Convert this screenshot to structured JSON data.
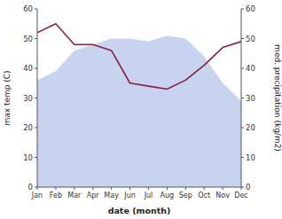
{
  "chart_data": {
    "type": "line",
    "categories": [
      "Jan",
      "Feb",
      "Mar",
      "Apr",
      "May",
      "Jun",
      "Jul",
      "Aug",
      "Sep",
      "Oct",
      "Nov",
      "Dec"
    ],
    "series": [
      {
        "type": "area",
        "color": "#b0c0e8",
        "values": [
          36,
          39,
          46,
          48,
          50,
          50,
          49,
          51,
          50,
          44,
          35,
          29
        ]
      },
      {
        "type": "line",
        "color": "#8b2040",
        "axis": "y2",
        "values": [
          52,
          55,
          48,
          48,
          46,
          35,
          34,
          33,
          36,
          41,
          47,
          49
        ]
      }
    ],
    "xlabel": "date (month)",
    "ylabel": "max temp (C)",
    "y2label": "med. precipitation (kg/m2)",
    "ylim": [
      0,
      60
    ],
    "yticks": [
      0,
      10,
      20,
      30,
      40,
      50,
      60
    ],
    "y2lim": [
      0,
      60
    ],
    "y2ticks": [
      0,
      10,
      20,
      30,
      40,
      50,
      60
    ]
  }
}
